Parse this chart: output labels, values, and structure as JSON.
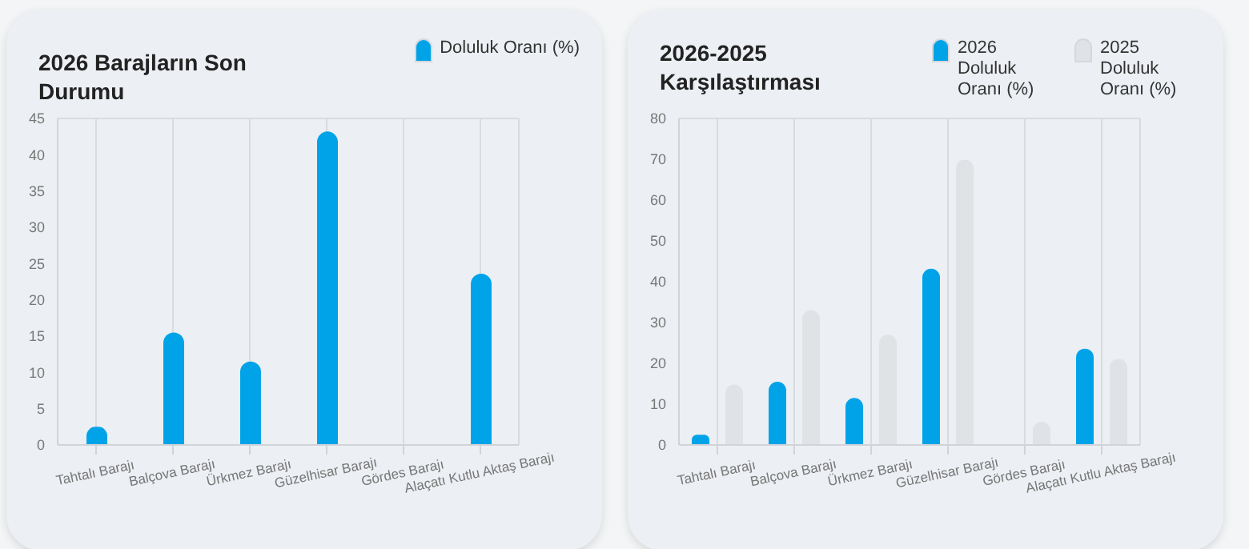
{
  "chart_data": [
    {
      "type": "bar",
      "title": "2026 Barajların Son Durumu",
      "categories": [
        "Tahtalı Barajı",
        "Balçova Barajı",
        "Ürkmez Barajı",
        "Güzelhisar Barajı",
        "Gördes Barajı",
        "Alaçatı Kutlu Aktaş Barajı"
      ],
      "series": [
        {
          "name": "Doluluk Oranı (%)",
          "color": "#00a3e8",
          "values": [
            2.5,
            15.5,
            11.5,
            43.2,
            0,
            23.6
          ]
        }
      ],
      "ylim": [
        0,
        45
      ],
      "yticks": [
        0,
        5,
        10,
        15,
        20,
        25,
        30,
        35,
        40,
        45
      ],
      "grid": true,
      "legend": "top right"
    },
    {
      "type": "bar",
      "title": "2026-2025 Karşılaştırması",
      "categories": [
        "Tahtalı Barajı",
        "Balçova Barajı",
        "Ürkmez Barajı",
        "Güzelhisar Barajı",
        "Gördes Barajı",
        "Alaçatı Kutlu Aktaş Barajı"
      ],
      "series": [
        {
          "name": "2026 Doluluk Oranı (%)",
          "color": "#00a3e8",
          "values": [
            2.5,
            15.5,
            11.5,
            43.2,
            0,
            23.6
          ]
        },
        {
          "name": "2025 Doluluk Oranı (%)",
          "color": "#e0e3e6",
          "values": [
            14.8,
            33,
            27,
            69.9,
            5.7,
            21.1
          ]
        }
      ],
      "ylim": [
        0,
        80
      ],
      "yticks": [
        0,
        10,
        20,
        30,
        40,
        50,
        60,
        70,
        80
      ],
      "grid": true,
      "legend": "top right"
    }
  ]
}
